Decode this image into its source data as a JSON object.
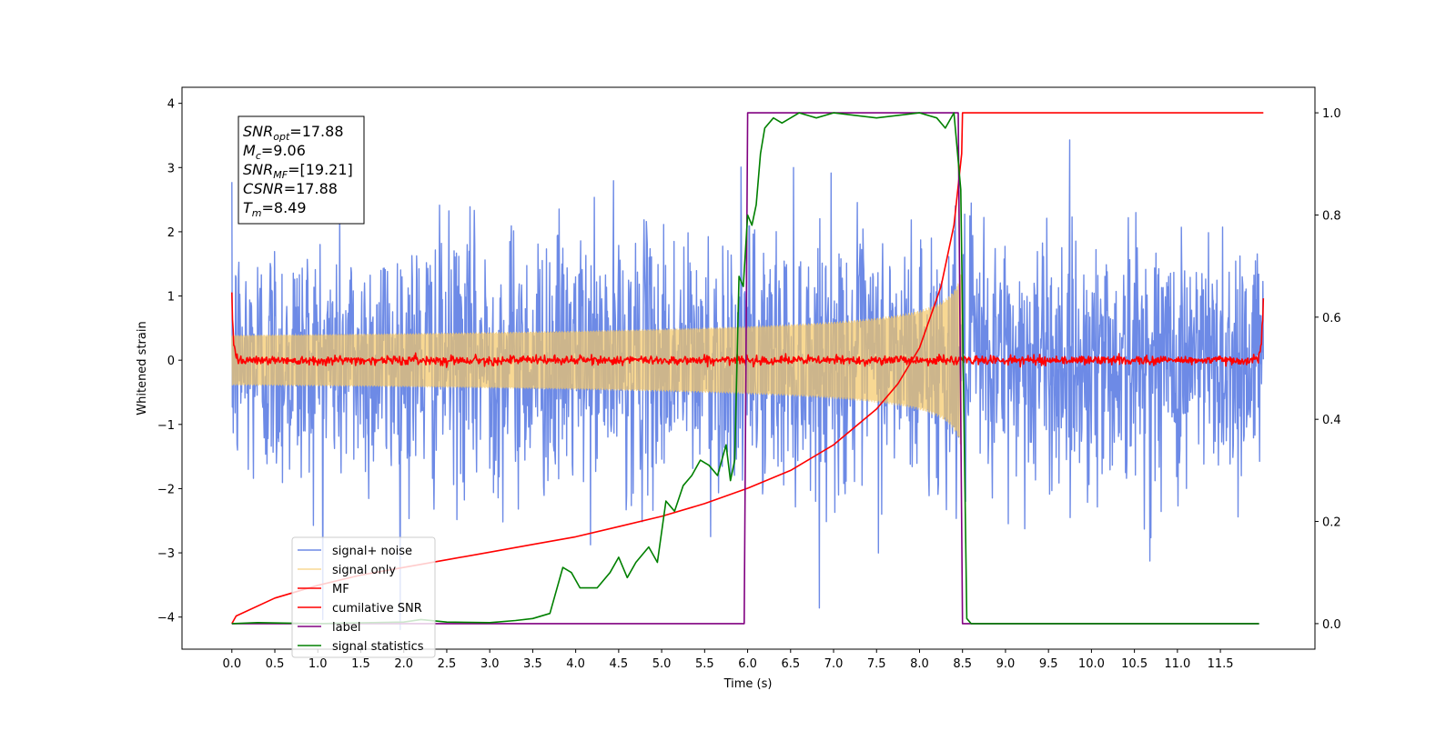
{
  "chart_data": {
    "type": "line",
    "xlabel": "Time (s)",
    "ylabel": "Whitened strain",
    "xlim": [
      -0.58,
      12.6
    ],
    "ylim": [
      -4.5,
      4.25
    ],
    "y2lim": [
      -0.05,
      1.05
    ],
    "x_ticks": [
      0.0,
      0.5,
      1.0,
      1.5,
      2.0,
      2.5,
      3.0,
      3.5,
      4.0,
      4.5,
      5.0,
      5.5,
      6.0,
      6.5,
      7.0,
      7.5,
      8.0,
      8.5,
      9.0,
      9.5,
      10.0,
      10.5,
      11.0,
      11.5
    ],
    "x_tick_labels": [
      "0.0",
      "0.5",
      "1.0",
      "1.5",
      "2.0",
      "2.5",
      "3.0",
      "3.5",
      "4.0",
      "4.5",
      "5.0",
      "5.5",
      "6.0",
      "6.5",
      "7.0",
      "7.5",
      "8.0",
      "8.5",
      "9.0",
      "9.5",
      "10.0",
      "10.5",
      "11.0",
      "11.5"
    ],
    "y_ticks": [
      4,
      3,
      2,
      1,
      0,
      -1,
      -2,
      -3,
      -4
    ],
    "y_tick_labels": [
      "4",
      "3",
      "2",
      "1",
      "0",
      "−1",
      "−2",
      "−3",
      "−4"
    ],
    "y2_ticks": [
      1.0,
      0.8,
      0.6,
      0.4,
      0.2,
      0.0
    ],
    "y2_tick_labels": [
      "1.0",
      "0.8",
      "0.6",
      "0.4",
      "0.2",
      "0.0"
    ],
    "grid": false,
    "legend_position": "lower-left",
    "annotation": [
      {
        "base": "SNR",
        "sub": "opt",
        "rest": "=17.88"
      },
      {
        "base": "M",
        "sub": "c",
        "rest": "=9.06"
      },
      {
        "base": "SNR",
        "sub": "MF",
        "rest": "=[19.21]"
      },
      {
        "base": "CSNR",
        "sub": "",
        "rest": "=17.88"
      },
      {
        "base": "T",
        "sub": "m",
        "rest": "=8.49"
      }
    ],
    "series": [
      {
        "name": "signal+ noise",
        "color": "#6d8ae6",
        "axis": "left",
        "kind": "noise",
        "x_range": [
          0.0,
          12.0
        ],
        "amplitude_std": 1.0
      },
      {
        "name": "signal only",
        "color": "#f5c865",
        "axis": "left",
        "kind": "chirp",
        "x_range": [
          0.0,
          8.49
        ],
        "amplitude_at_end": 1.4
      },
      {
        "name": "MF",
        "color": "#ff0000",
        "axis": "left",
        "kind": "mf",
        "x_range": [
          0.0,
          12.0
        ],
        "edge_value": 1.0
      },
      {
        "name": "cumilative SNR",
        "color": "#ff0000",
        "axis": "right",
        "x": [
          0.0,
          0.05,
          0.5,
          1.0,
          1.5,
          2.0,
          2.5,
          3.0,
          3.5,
          4.0,
          4.5,
          5.0,
          5.5,
          6.0,
          6.5,
          7.0,
          7.5,
          7.75,
          8.0,
          8.25,
          8.4,
          8.49,
          8.5,
          12.0
        ],
        "y": [
          0.0,
          0.015,
          0.05,
          0.075,
          0.095,
          0.11,
          0.125,
          0.14,
          0.155,
          0.17,
          0.19,
          0.21,
          0.235,
          0.265,
          0.3,
          0.35,
          0.42,
          0.47,
          0.54,
          0.66,
          0.78,
          0.92,
          1.0,
          1.0
        ]
      },
      {
        "name": "label",
        "color": "#800080",
        "axis": "right",
        "x": [
          0.0,
          5.96,
          6.0,
          8.45,
          8.5,
          11.95
        ],
        "y": [
          0.0,
          0.0,
          1.0,
          1.0,
          0.0,
          0.0
        ]
      },
      {
        "name": "signal statistics",
        "color": "#008000",
        "axis": "right",
        "x": [
          0.0,
          0.3,
          1.0,
          2.0,
          2.2,
          2.5,
          3.0,
          3.3,
          3.5,
          3.7,
          3.85,
          3.95,
          4.05,
          4.15,
          4.25,
          4.4,
          4.5,
          4.6,
          4.7,
          4.85,
          4.95,
          5.05,
          5.15,
          5.25,
          5.35,
          5.45,
          5.55,
          5.65,
          5.75,
          5.8,
          5.85,
          5.9,
          5.95,
          6.0,
          6.05,
          6.1,
          6.15,
          6.2,
          6.3,
          6.4,
          6.5,
          6.6,
          6.8,
          7.0,
          7.5,
          8.0,
          8.2,
          8.3,
          8.4,
          8.48,
          8.55,
          8.6,
          11.95
        ],
        "y": [
          0.0,
          0.002,
          0.0,
          0.003,
          0.008,
          0.003,
          0.002,
          0.006,
          0.01,
          0.02,
          0.11,
          0.1,
          0.07,
          0.07,
          0.07,
          0.1,
          0.13,
          0.09,
          0.12,
          0.15,
          0.12,
          0.24,
          0.22,
          0.27,
          0.29,
          0.32,
          0.31,
          0.29,
          0.35,
          0.28,
          0.32,
          0.68,
          0.66,
          0.8,
          0.78,
          0.82,
          0.92,
          0.97,
          0.99,
          0.98,
          0.99,
          1.0,
          0.99,
          1.0,
          0.99,
          1.0,
          0.99,
          0.97,
          1.0,
          0.85,
          0.01,
          0.0,
          0.0
        ]
      }
    ]
  }
}
